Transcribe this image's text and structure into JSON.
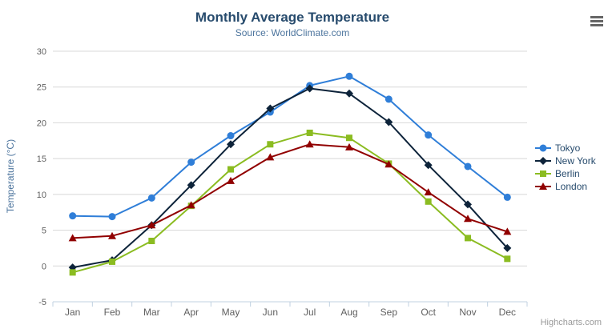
{
  "header": {
    "title": "Monthly Average Temperature",
    "subtitle": "Source: WorldClimate.com"
  },
  "credits": "Highcharts.com",
  "chart_data": {
    "type": "line",
    "title": "Monthly Average Temperature",
    "subtitle": "Source: WorldClimate.com",
    "categories": [
      "Jan",
      "Feb",
      "Mar",
      "Apr",
      "May",
      "Jun",
      "Jul",
      "Aug",
      "Sep",
      "Oct",
      "Nov",
      "Dec"
    ],
    "xlabel": "",
    "ylabel": "Temperature (°C)",
    "ylim": [
      -5,
      30
    ],
    "ytick_step": 5,
    "grid": true,
    "legend_position": "right",
    "colors": {
      "grid": "#D8D8D8",
      "axis_line": "#C0D0E0",
      "tick_label": "#606060",
      "title_text": "#274b6d",
      "subtitle_text": "#4d759e",
      "legend_text": "#274b6d",
      "credits_text": "#999999"
    },
    "series": [
      {
        "name": "Tokyo",
        "color": "#2f7ed8",
        "marker": "circle",
        "values": [
          7.0,
          6.9,
          9.5,
          14.5,
          18.2,
          21.5,
          25.2,
          26.5,
          23.3,
          18.3,
          13.9,
          9.6
        ]
      },
      {
        "name": "New York",
        "color": "#0d233a",
        "marker": "diamond",
        "values": [
          -0.2,
          0.8,
          5.7,
          11.3,
          17.0,
          22.0,
          24.8,
          24.1,
          20.1,
          14.1,
          8.6,
          2.5
        ]
      },
      {
        "name": "Berlin",
        "color": "#8bbc21",
        "marker": "square",
        "values": [
          -0.9,
          0.6,
          3.5,
          8.4,
          13.5,
          17.0,
          18.6,
          17.9,
          14.3,
          9.0,
          3.9,
          1.0
        ]
      },
      {
        "name": "London",
        "color": "#910000",
        "marker": "triangle",
        "values": [
          3.9,
          4.2,
          5.7,
          8.5,
          11.9,
          15.2,
          17.0,
          16.6,
          14.2,
          10.3,
          6.6,
          4.8
        ]
      }
    ]
  }
}
